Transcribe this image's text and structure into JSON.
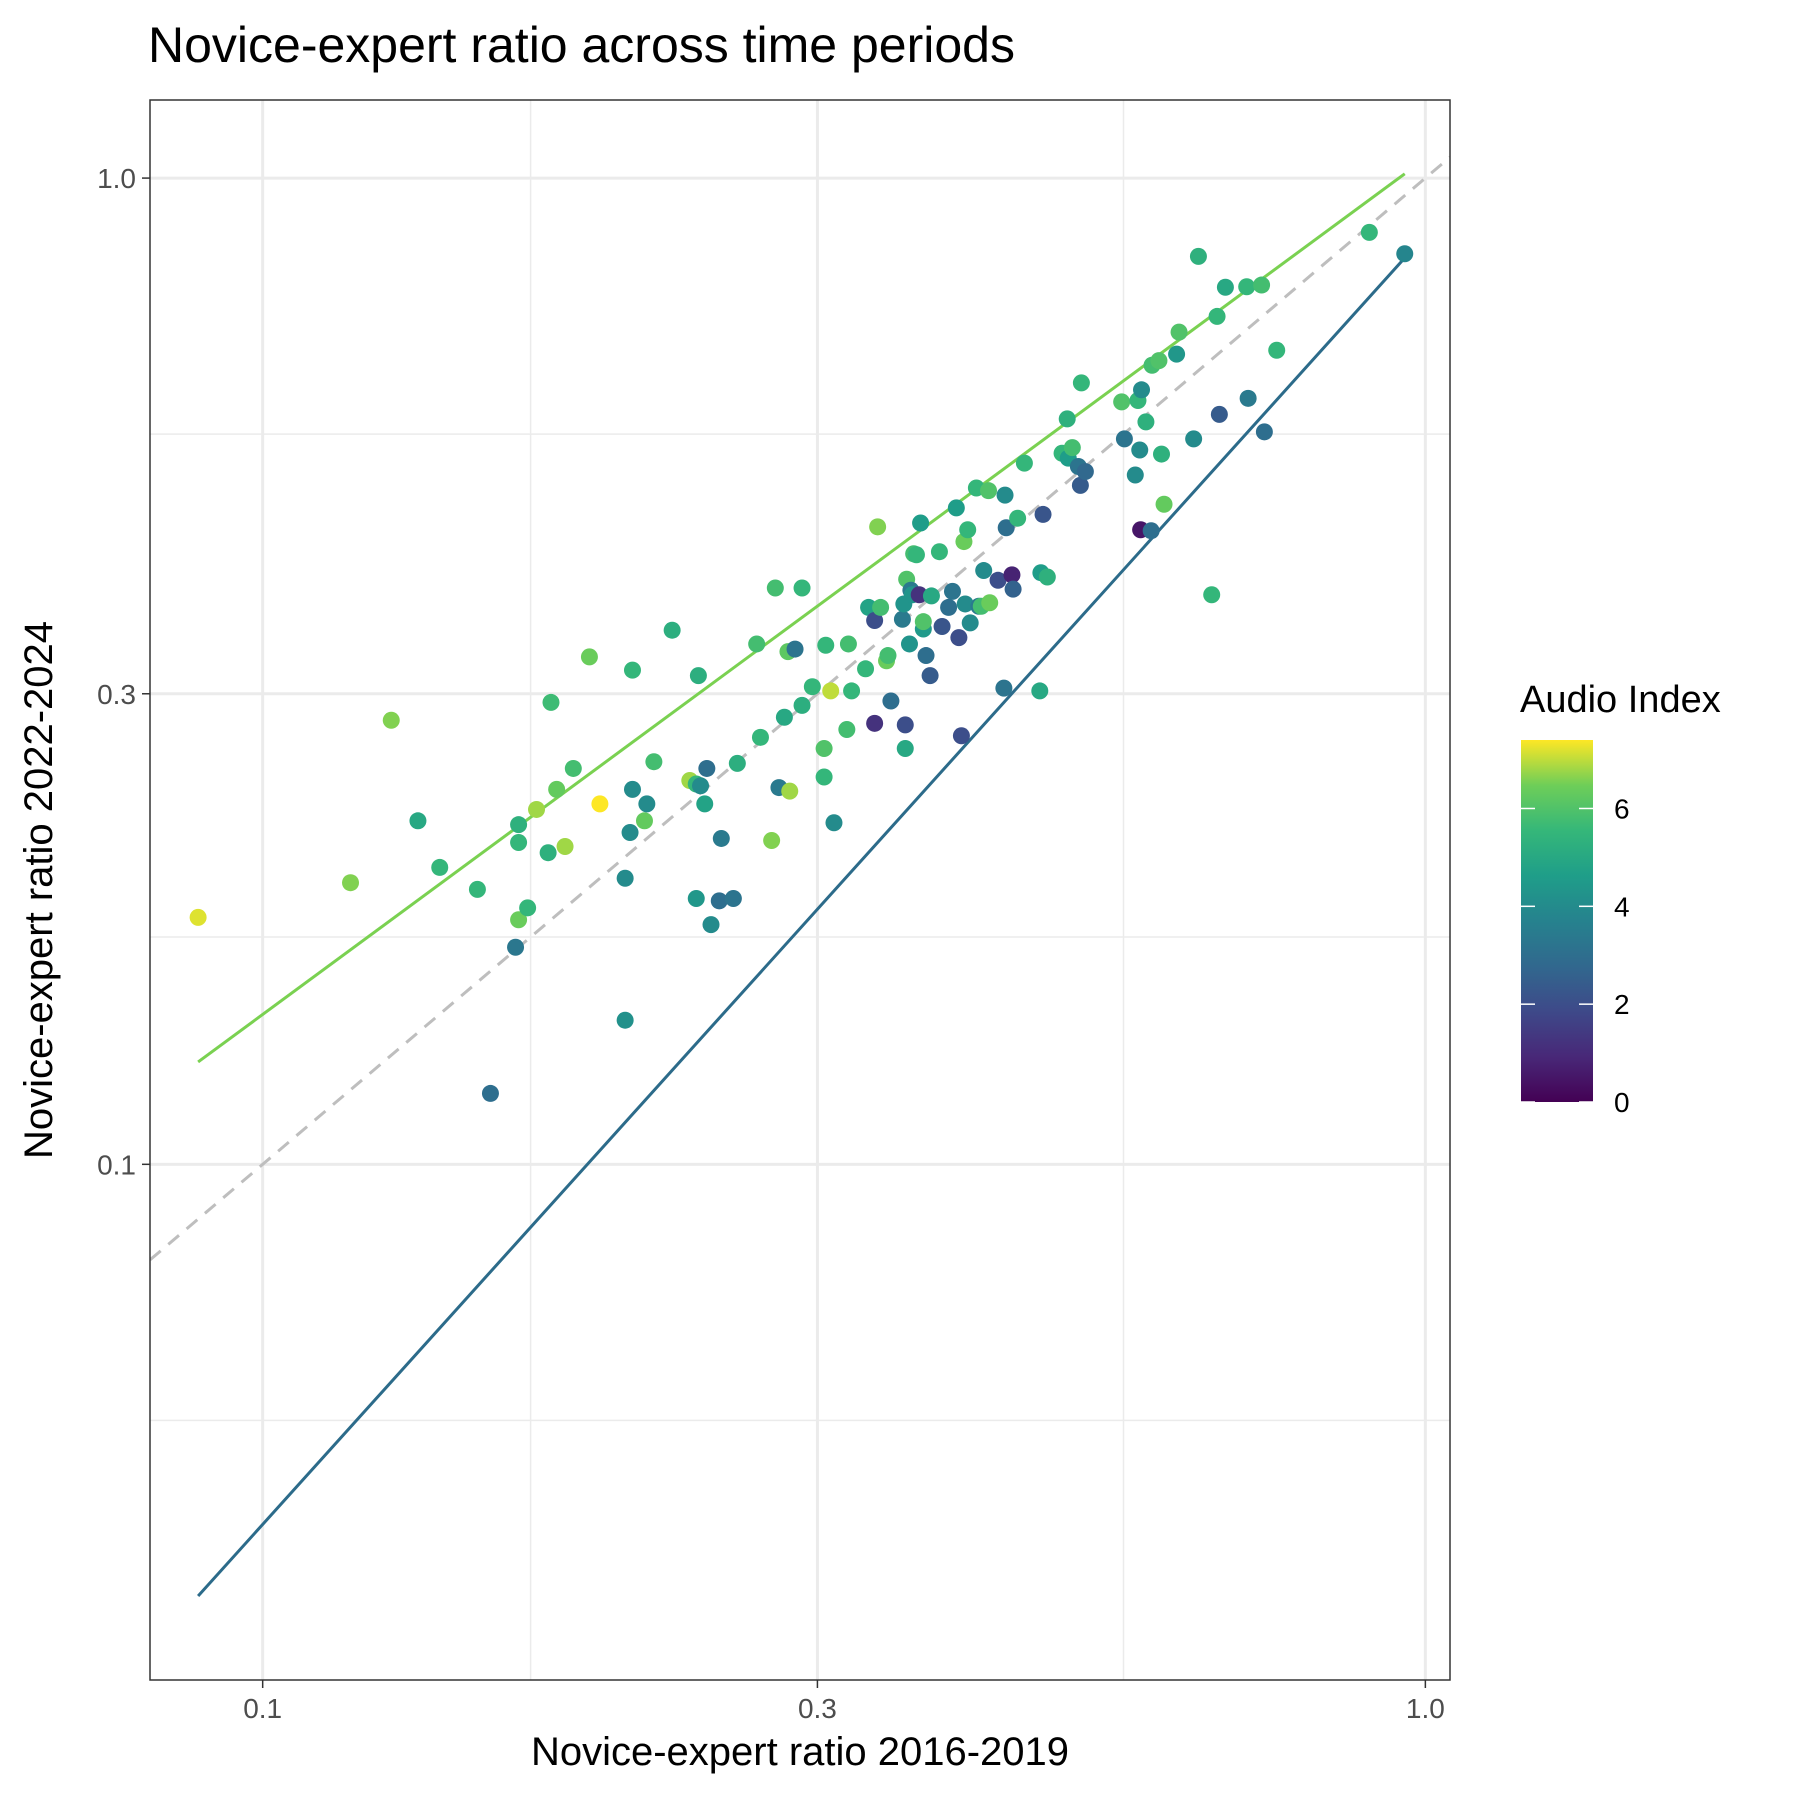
{
  "chart_data": {
    "type": "scatter",
    "title": "Novice-expert ratio across time periods",
    "xlabel": "Novice-expert ratio 2016-2019",
    "ylabel": "Novice-expert ratio 2022-2024",
    "x_scale": "log10",
    "y_scale": "log10",
    "xlim": [
      0.08,
      1.05
    ],
    "ylim": [
      0.03,
      1.2
    ],
    "x_ticks": [
      {
        "value": 0.1,
        "label": "0.1"
      },
      {
        "value": 0.3,
        "label": "0.3"
      },
      {
        "value": 1.0,
        "label": "1.0"
      }
    ],
    "y_ticks": [
      {
        "value": 0.1,
        "label": "0.1"
      },
      {
        "value": 0.3,
        "label": "0.3"
      },
      {
        "value": 1.0,
        "label": "1.0"
      }
    ],
    "x_minor": [
      0.055,
      0.17,
      0.55
    ],
    "y_minor": [
      0.055,
      0.17,
      0.55
    ],
    "grid": true,
    "legend": {
      "title": "Audio Index",
      "placement": "right",
      "range": [
        0,
        7.4
      ],
      "ticks": [
        {
          "value": 0,
          "label": "0"
        },
        {
          "value": 2,
          "label": "2"
        },
        {
          "value": 4,
          "label": "4"
        },
        {
          "value": 6,
          "label": "6"
        }
      ]
    },
    "reference_line": {
      "name": "identity",
      "style": "dashed",
      "color": "#bebebe",
      "slope": 1,
      "intercept": 0
    },
    "fit_lines": [
      {
        "color": "#7ad151",
        "x": [
          0.088,
          0.96
        ],
        "y": [
          0.127,
          1.01
        ]
      },
      {
        "color": "#2c6b8a",
        "x": [
          0.088,
          0.96
        ],
        "y": [
          0.0365,
          0.83
        ]
      }
    ],
    "points": [
      [
        0.088,
        0.178,
        7.2
      ],
      [
        0.119,
        0.193,
        6.6
      ],
      [
        0.129,
        0.282,
        6.6
      ],
      [
        0.136,
        0.223,
        5.0
      ],
      [
        0.142,
        0.2,
        5.5
      ],
      [
        0.153,
        0.19,
        5.5
      ],
      [
        0.157,
        0.118,
        3.0
      ],
      [
        0.165,
        0.166,
        3.3
      ],
      [
        0.166,
        0.177,
        6.4
      ],
      [
        0.166,
        0.212,
        5.5
      ],
      [
        0.166,
        0.221,
        5.3
      ],
      [
        0.169,
        0.182,
        5.5
      ],
      [
        0.172,
        0.229,
        6.8
      ],
      [
        0.176,
        0.207,
        5.3
      ],
      [
        0.177,
        0.294,
        5.7
      ],
      [
        0.179,
        0.24,
        6.3
      ],
      [
        0.182,
        0.21,
        6.8
      ],
      [
        0.185,
        0.252,
        5.8
      ],
      [
        0.191,
        0.327,
        6.4
      ],
      [
        0.195,
        0.232,
        7.4
      ],
      [
        0.205,
        0.14,
        4.2
      ],
      [
        0.205,
        0.195,
        4.0
      ],
      [
        0.207,
        0.217,
        4.0
      ],
      [
        0.208,
        0.24,
        4.0
      ],
      [
        0.208,
        0.317,
        5.5
      ],
      [
        0.213,
        0.223,
        6.3
      ],
      [
        0.214,
        0.232,
        4.0
      ],
      [
        0.217,
        0.256,
        5.8
      ],
      [
        0.225,
        0.348,
        5.2
      ],
      [
        0.233,
        0.245,
        6.8
      ],
      [
        0.236,
        0.243,
        5.5
      ],
      [
        0.236,
        0.186,
        4.4
      ],
      [
        0.237,
        0.313,
        5.2
      ],
      [
        0.238,
        0.242,
        4.0
      ],
      [
        0.24,
        0.232,
        4.8
      ],
      [
        0.241,
        0.252,
        3.0
      ],
      [
        0.243,
        0.175,
        4.0
      ],
      [
        0.247,
        0.185,
        3.0
      ],
      [
        0.248,
        0.214,
        3.4
      ],
      [
        0.254,
        0.186,
        3.2
      ],
      [
        0.256,
        0.255,
        5.2
      ],
      [
        0.266,
        0.337,
        5.8
      ],
      [
        0.268,
        0.271,
        5.5
      ],
      [
        0.274,
        0.213,
        6.6
      ],
      [
        0.276,
        0.384,
        5.8
      ],
      [
        0.278,
        0.241,
        3.4
      ],
      [
        0.281,
        0.284,
        5.0
      ],
      [
        0.283,
        0.331,
        6.2
      ],
      [
        0.284,
        0.239,
        6.8
      ],
      [
        0.287,
        0.333,
        3.2
      ],
      [
        0.291,
        0.384,
        5.5
      ],
      [
        0.291,
        0.292,
        5.2
      ],
      [
        0.297,
        0.305,
        5.5
      ],
      [
        0.304,
        0.264,
        6.0
      ],
      [
        0.304,
        0.247,
        5.5
      ],
      [
        0.305,
        0.336,
        5.5
      ],
      [
        0.308,
        0.302,
        7.0
      ],
      [
        0.31,
        0.222,
        4.0
      ],
      [
        0.318,
        0.276,
        5.8
      ],
      [
        0.319,
        0.337,
        5.8
      ],
      [
        0.321,
        0.302,
        5.5
      ],
      [
        0.33,
        0.318,
        5.5
      ],
      [
        0.332,
        0.367,
        4.8
      ],
      [
        0.336,
        0.356,
        2.0
      ],
      [
        0.336,
        0.28,
        1.2
      ],
      [
        0.338,
        0.443,
        6.6
      ],
      [
        0.34,
        0.367,
        5.8
      ],
      [
        0.344,
        0.324,
        6.4
      ],
      [
        0.345,
        0.328,
        5.8
      ],
      [
        0.347,
        0.295,
        3.0
      ],
      [
        0.355,
        0.357,
        3.4
      ],
      [
        0.356,
        0.37,
        4.3
      ],
      [
        0.357,
        0.264,
        5.0
      ],
      [
        0.357,
        0.279,
        2.0
      ],
      [
        0.358,
        0.392,
        6.0
      ],
      [
        0.36,
        0.337,
        4.3
      ],
      [
        0.361,
        0.382,
        3.4
      ],
      [
        0.362,
        0.378,
        4.3
      ],
      [
        0.363,
        0.416,
        5.8
      ],
      [
        0.365,
        0.415,
        5.5
      ],
      [
        0.367,
        0.378,
        1.2
      ],
      [
        0.368,
        0.447,
        4.6
      ],
      [
        0.37,
        0.349,
        4.5
      ],
      [
        0.37,
        0.355,
        6.0
      ],
      [
        0.372,
        0.328,
        3.0
      ],
      [
        0.375,
        0.313,
        2.4
      ],
      [
        0.376,
        0.377,
        5.0
      ],
      [
        0.382,
        0.418,
        5.5
      ],
      [
        0.384,
        0.351,
        2.2
      ],
      [
        0.389,
        0.367,
        3.0
      ],
      [
        0.392,
        0.381,
        3.2
      ],
      [
        0.395,
        0.463,
        4.6
      ],
      [
        0.397,
        0.342,
        2.0
      ],
      [
        0.399,
        0.272,
        2.0
      ],
      [
        0.401,
        0.428,
        6.4
      ],
      [
        0.402,
        0.37,
        4.0
      ],
      [
        0.404,
        0.44,
        5.5
      ],
      [
        0.406,
        0.354,
        4.0
      ],
      [
        0.411,
        0.485,
        5.5
      ],
      [
        0.413,
        0.368,
        3.4
      ],
      [
        0.415,
        0.368,
        5.8
      ],
      [
        0.417,
        0.4,
        4.0
      ],
      [
        0.421,
        0.482,
        6.0
      ],
      [
        0.422,
        0.371,
        6.4
      ],
      [
        0.429,
        0.391,
        2.0
      ],
      [
        0.434,
        0.304,
        3.2
      ],
      [
        0.435,
        0.477,
        4.0
      ],
      [
        0.436,
        0.442,
        3.0
      ],
      [
        0.441,
        0.396,
        0.8
      ],
      [
        0.442,
        0.383,
        2.6
      ],
      [
        0.446,
        0.452,
        5.5
      ],
      [
        0.452,
        0.514,
        5.5
      ],
      [
        0.466,
        0.302,
        5.0
      ],
      [
        0.467,
        0.398,
        4.6
      ],
      [
        0.469,
        0.456,
        2.2
      ],
      [
        0.473,
        0.394,
        5.3
      ],
      [
        0.487,
        0.526,
        5.5
      ],
      [
        0.492,
        0.57,
        5.3
      ],
      [
        0.493,
        0.52,
        4.6
      ],
      [
        0.497,
        0.533,
        5.8
      ],
      [
        0.503,
        0.51,
        3.2
      ],
      [
        0.505,
        0.488,
        2.4
      ],
      [
        0.506,
        0.62,
        5.5
      ],
      [
        0.51,
        0.504,
        2.8
      ],
      [
        0.548,
        0.593,
        6.0
      ],
      [
        0.551,
        0.544,
        3.2
      ],
      [
        0.563,
        0.5,
        4.0
      ],
      [
        0.566,
        0.595,
        5.5
      ],
      [
        0.568,
        0.53,
        4.0
      ],
      [
        0.569,
        0.44,
        0.5
      ],
      [
        0.57,
        0.61,
        4.0
      ],
      [
        0.575,
        0.566,
        5.3
      ],
      [
        0.581,
        0.439,
        3.0
      ],
      [
        0.582,
        0.646,
        5.8
      ],
      [
        0.59,
        0.653,
        6.0
      ],
      [
        0.593,
        0.525,
        5.3
      ],
      [
        0.596,
        0.467,
        6.3
      ],
      [
        0.611,
        0.663,
        4.4
      ],
      [
        0.614,
        0.698,
        6.0
      ],
      [
        0.632,
        0.544,
        4.0
      ],
      [
        0.638,
        0.833,
        5.3
      ],
      [
        0.655,
        0.378,
        5.5
      ],
      [
        0.662,
        0.724,
        5.5
      ],
      [
        0.665,
        0.576,
        2.4
      ],
      [
        0.673,
        0.775,
        5.0
      ],
      [
        0.702,
        0.776,
        5.5
      ],
      [
        0.704,
        0.598,
        3.4
      ],
      [
        0.723,
        0.779,
        5.8
      ],
      [
        0.727,
        0.553,
        3.0
      ],
      [
        0.745,
        0.669,
        5.5
      ],
      [
        0.895,
        0.881,
        5.5
      ],
      [
        0.96,
        0.838,
        3.8
      ]
    ]
  }
}
